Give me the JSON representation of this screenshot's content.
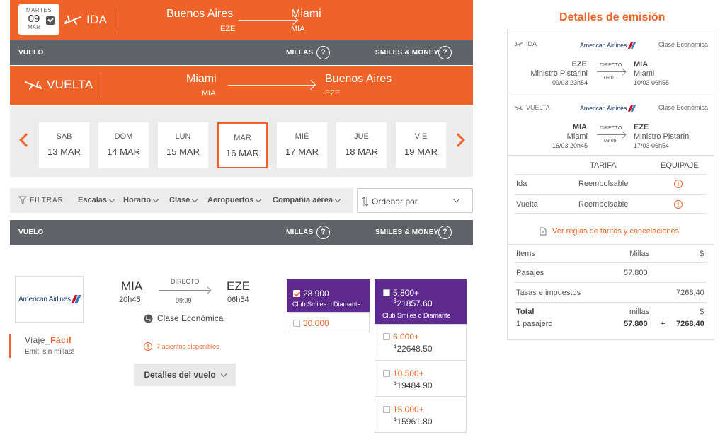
{
  "ida": {
    "date_dow": "MARTES",
    "date_day": "09",
    "date_month": "MAR",
    "label": "IDA",
    "origin_city": "Buenos Aires",
    "origin_code": "EZE",
    "dest_city": "Miami",
    "dest_code": "MIA"
  },
  "header_bar": {
    "vuelo": "VUELO",
    "millas": "MILLAS",
    "smiles_money": "SMILES & MONEY",
    "help": "?"
  },
  "vuelta": {
    "label": "VUELTA",
    "origin_city": "Miami",
    "origin_code": "MIA",
    "dest_city": "Buenos Aires",
    "dest_code": "EZE"
  },
  "dates": [
    {
      "dow": "SAB",
      "date": "13 MAR",
      "selected": false
    },
    {
      "dow": "DOM",
      "date": "14 MAR",
      "selected": false
    },
    {
      "dow": "LUN",
      "date": "15 MAR",
      "selected": false
    },
    {
      "dow": "MAR",
      "date": "16 MAR",
      "selected": true
    },
    {
      "dow": "MIÉ",
      "date": "17 MAR",
      "selected": false
    },
    {
      "dow": "JUE",
      "date": "18 MAR",
      "selected": false
    },
    {
      "dow": "VIE",
      "date": "19 MAR",
      "selected": false
    }
  ],
  "filters": {
    "label": "FILTRAR",
    "items": [
      "Escalas",
      "Horario",
      "Clase",
      "Aeropuertos",
      "Compañía aérea"
    ],
    "order_label": "Ordenar por"
  },
  "flight": {
    "airline": "American Airlines",
    "origin": "MIA",
    "dep_time": "20h45",
    "type": "DIRECTO",
    "duration": "09:09",
    "dest": "EZE",
    "arr_time": "06h54",
    "cabin": "Clase Económica",
    "seats": "7 asientos disponibles",
    "details_button": "Detalles del vuelo",
    "promo_title_a": "Viaje",
    "promo_title_b": "Fácil",
    "promo_sub": "Emití sin millas!"
  },
  "miles_options": {
    "club": {
      "miles": "28.900",
      "label": "Club Smiles o Diamante"
    },
    "regular": {
      "miles": "30.000"
    }
  },
  "money_options": {
    "club": {
      "miles": "5.800+",
      "money_sign": "$",
      "money": "21857.60",
      "label": "Club Smiles o Diamante"
    },
    "others": [
      {
        "miles": "6.000+",
        "money_sign": "$",
        "money": "22648.50"
      },
      {
        "miles": "10.500+",
        "money_sign": "$",
        "money": "19484.90"
      },
      {
        "miles": "15.000+",
        "money_sign": "$",
        "money": "15961.80"
      }
    ]
  },
  "panel": {
    "title": "Detalles de emisión",
    "ida": {
      "label": "IDA",
      "airline": "American Airlines",
      "cabin": "Clase Económica",
      "from_code": "EZE",
      "from_name": "Ministro Pistarini",
      "from_time": "09/03 23h54",
      "type": "DIRECTO",
      "duration": "09:01",
      "to_code": "MIA",
      "to_name": "Miami",
      "to_time": "10/03 06h55"
    },
    "vuelta": {
      "label": "VUELTA",
      "airline": "American Airlines",
      "cabin": "Clase Económica",
      "from_code": "MIA",
      "from_name": "Miami",
      "from_time": "16/03 20h45",
      "type": "DIRECTO",
      "duration": "09:09",
      "to_code": "EZE",
      "to_name": "Ministro Pistarini",
      "to_time": "17/03 06h54"
    },
    "fare_header": {
      "tarifa": "TARIFA",
      "equipaje": "EQUIPAJE"
    },
    "fare_rows": [
      {
        "leg": "Ida",
        "tarifa": "Reembolsable",
        "icon": "!"
      },
      {
        "leg": "Vuelta",
        "tarifa": "Reembolsable",
        "icon": "!"
      }
    ],
    "rules_link": "Ver reglas de tarifas y cancelaciones",
    "items_header": {
      "items": "Items",
      "millas": "Millas",
      "money": "$"
    },
    "pasajes": {
      "label": "Pasajes",
      "millas": "57.800"
    },
    "tasas": {
      "label": "Tasas e impuestos",
      "money": "7268,40"
    },
    "total": {
      "label": "Total",
      "millas_label": "millas",
      "money_label": "$",
      "passengers": "1 pasajero",
      "millas": "57.800",
      "plus": "+",
      "money": "7268,40"
    }
  },
  "colors": {
    "brand": "#ef6328",
    "bar": "#606468",
    "purple": "#5e2a8f"
  }
}
